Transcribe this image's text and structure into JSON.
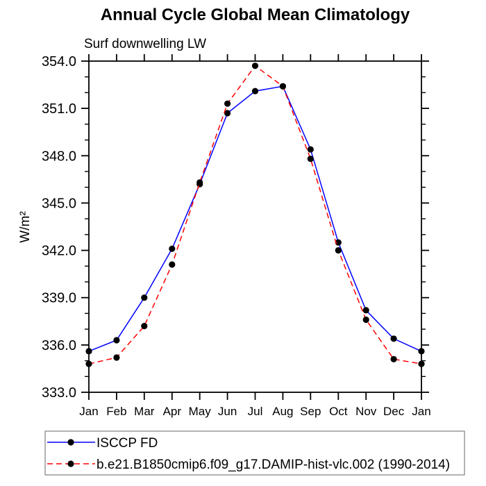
{
  "header": {
    "title": "Annual Cycle Global Mean Climatology",
    "subtitle": "Surf downwelling LW"
  },
  "chart_data": {
    "type": "line",
    "title": "Annual Cycle Global Mean Climatology",
    "subtitle": "Surf downwelling LW",
    "ylabel": "W/m²",
    "xlabel": "",
    "categories": [
      "Jan",
      "Feb",
      "Mar",
      "Apr",
      "May",
      "Jun",
      "Jul",
      "Aug",
      "Sep",
      "Oct",
      "Nov",
      "Dec",
      "Jan"
    ],
    "ylim": [
      333.0,
      354.0
    ],
    "ytick_major": 3.0,
    "ytick_minor": 1.0,
    "ytick_labels": [
      "333.0",
      "336.0",
      "339.0",
      "342.0",
      "345.0",
      "348.0",
      "351.0",
      "354.0"
    ],
    "grid": false,
    "legend_position": "bottom-left-box",
    "series": [
      {
        "name": "ISCCP FD",
        "color": "#0000ff",
        "line_style": "solid",
        "marker": "filled-circle",
        "marker_color": "#000000",
        "values": [
          335.6,
          336.3,
          339.0,
          342.1,
          346.2,
          350.7,
          352.1,
          352.4,
          348.4,
          342.5,
          338.2,
          336.4,
          335.6
        ]
      },
      {
        "name": "b.e21.B1850cmip6.f09_g17.DAMIP-hist-vlc.002 (1990-2014)",
        "color": "#ff0000",
        "line_style": "dashed",
        "marker": "filled-circle",
        "marker_color": "#000000",
        "values": [
          334.8,
          335.2,
          337.2,
          341.1,
          346.3,
          351.3,
          353.7,
          352.4,
          347.8,
          342.0,
          337.6,
          335.1,
          334.8
        ]
      }
    ],
    "colors": {
      "axis": "#000000",
      "text": "#000000",
      "legend_border": "#808080",
      "background": "#ffffff"
    }
  }
}
